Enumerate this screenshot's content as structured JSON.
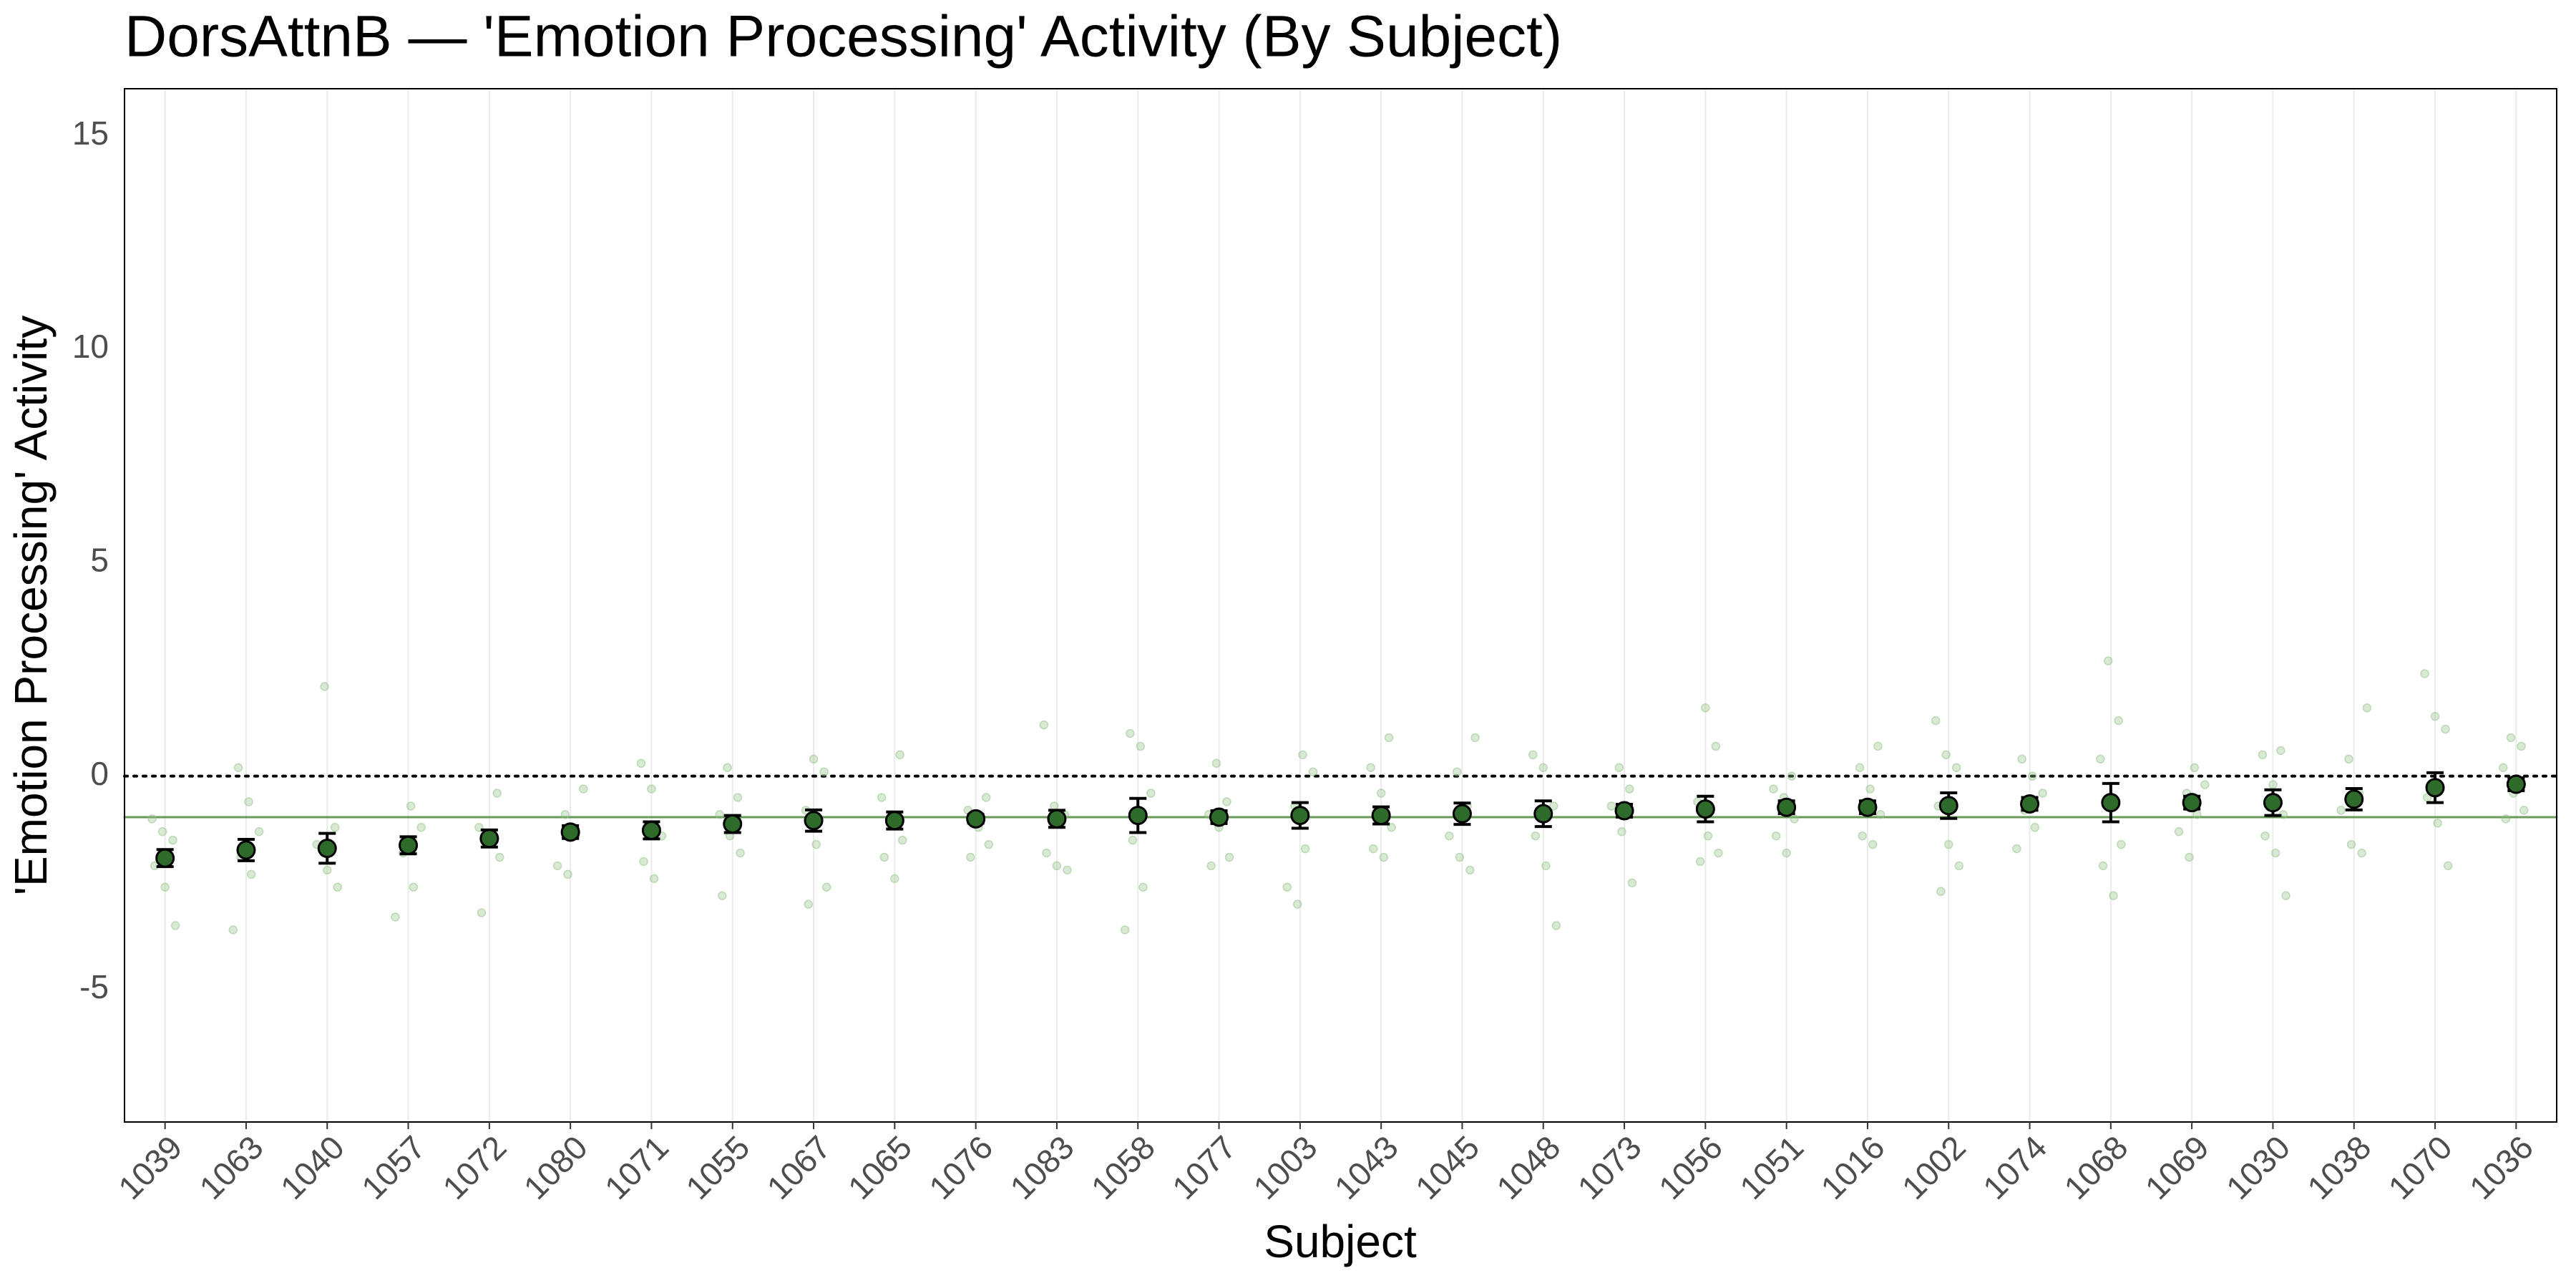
{
  "chart_data": {
    "type": "dotplot",
    "title": "DorsAttnB — 'Emotion Processing' Activity (By Subject)",
    "x_label": "Subject",
    "y_label": "'Emotion Processing' Activity",
    "categories": [
      "1039",
      "1063",
      "1040",
      "1057",
      "1072",
      "1080",
      "1071",
      "1055",
      "1067",
      "1065",
      "1076",
      "1083",
      "1058",
      "1077",
      "1003",
      "1043",
      "1045",
      "1048",
      "1073",
      "1056",
      "1051",
      "1016",
      "1002",
      "1074",
      "1068",
      "1069",
      "1030",
      "1038",
      "1070",
      "1036"
    ],
    "values": [
      -1.92,
      -1.73,
      -1.69,
      -1.62,
      -1.46,
      -1.31,
      -1.27,
      -1.12,
      -1.04,
      -1.04,
      -1.0,
      -1.0,
      -0.92,
      -0.96,
      -0.92,
      -0.92,
      -0.88,
      -0.88,
      -0.81,
      -0.77,
      -0.73,
      -0.73,
      -0.69,
      -0.65,
      -0.62,
      -0.62,
      -0.62,
      -0.54,
      -0.27,
      -0.19
    ],
    "errors": [
      0.2,
      0.25,
      0.35,
      0.2,
      0.2,
      0.15,
      0.2,
      0.2,
      0.25,
      0.2,
      0.1,
      0.2,
      0.4,
      0.15,
      0.3,
      0.2,
      0.25,
      0.3,
      0.15,
      0.3,
      0.15,
      0.15,
      0.3,
      0.15,
      0.45,
      0.15,
      0.3,
      0.25,
      0.35,
      0.15
    ],
    "points": [
      [
        -1.0,
        -1.3,
        -1.5,
        -2.1,
        -2.6,
        -3.5
      ],
      [
        0.2,
        -0.6,
        -1.3,
        -1.9,
        -2.3,
        -3.6
      ],
      [
        2.1,
        -1.2,
        -1.6,
        -2.2,
        -2.6
      ],
      [
        -0.7,
        -1.2,
        -1.8,
        -2.6,
        -3.3
      ],
      [
        -0.4,
        -1.2,
        -1.5,
        -1.9,
        -3.2
      ],
      [
        -0.3,
        -0.9,
        -1.4,
        -2.1,
        -2.3
      ],
      [
        0.3,
        -0.3,
        -1.4,
        -2.0,
        -2.4
      ],
      [
        0.2,
        -0.5,
        -0.9,
        -1.4,
        -1.8,
        -2.8
      ],
      [
        0.4,
        0.1,
        -0.8,
        -1.6,
        -2.6,
        -3.0
      ],
      [
        0.5,
        -0.5,
        -0.9,
        -1.5,
        -1.9,
        -2.4
      ],
      [
        -0.5,
        -0.8,
        -1.2,
        -1.6,
        -1.9
      ],
      [
        1.2,
        -0.7,
        -0.9,
        -1.8,
        -2.1,
        -2.2
      ],
      [
        1.0,
        0.7,
        -0.4,
        -1.5,
        -2.6,
        -3.6
      ],
      [
        0.3,
        -0.6,
        -0.9,
        -1.2,
        -1.9,
        -2.1
      ],
      [
        0.5,
        0.1,
        -0.7,
        -1.7,
        -2.6,
        -3.0
      ],
      [
        0.9,
        0.2,
        -0.4,
        -1.2,
        -1.7,
        -1.9
      ],
      [
        0.9,
        0.1,
        -0.7,
        -1.4,
        -1.9,
        -2.2
      ],
      [
        0.5,
        0.2,
        -0.7,
        -1.4,
        -2.1,
        -3.5
      ],
      [
        0.2,
        -0.3,
        -0.7,
        -1.3,
        -2.5
      ],
      [
        1.6,
        0.7,
        -0.6,
        -1.4,
        -1.8,
        -2.0
      ],
      [
        0.0,
        -0.3,
        -0.5,
        -1.0,
        -1.4,
        -1.8
      ],
      [
        0.7,
        0.2,
        -0.3,
        -0.9,
        -1.4,
        -1.6
      ],
      [
        1.3,
        0.5,
        0.2,
        -0.7,
        -1.6,
        -2.1,
        -2.7
      ],
      [
        0.4,
        0.0,
        -0.4,
        -0.8,
        -1.2,
        -1.7
      ],
      [
        2.7,
        1.3,
        0.4,
        -0.7,
        -1.6,
        -2.1,
        -2.8
      ],
      [
        0.2,
        -0.2,
        -0.4,
        -0.9,
        -1.3,
        -1.9
      ],
      [
        0.6,
        0.5,
        -0.2,
        -0.9,
        -1.4,
        -1.8,
        -2.8
      ],
      [
        1.6,
        0.4,
        -0.4,
        -0.8,
        -1.6,
        -1.8
      ],
      [
        2.4,
        1.4,
        1.1,
        -0.5,
        -1.1,
        -2.1
      ],
      [
        0.9,
        0.7,
        0.2,
        -0.4,
        -0.8,
        -1.0
      ]
    ],
    "color": "#2e6b2a",
    "point_color": "#8fbf85",
    "hlines": [
      {
        "value": 0,
        "style": "dotted",
        "color": "#000000"
      },
      {
        "value": -0.96,
        "style": "solid",
        "color": "#6a9a5a"
      }
    ],
    "ylim": [
      -8.1,
      16.1
    ],
    "yticks": [
      -5,
      0,
      5,
      10,
      15
    ],
    "grid": "x"
  }
}
